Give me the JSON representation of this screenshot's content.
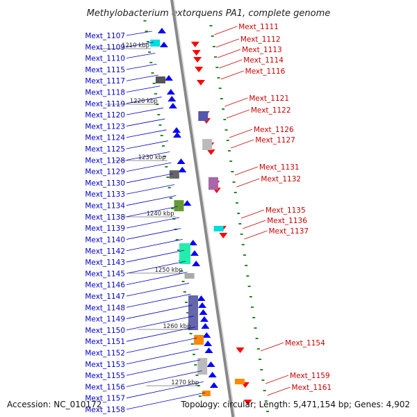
{
  "title": "Methylobacterium extorquens PA1, complete genome",
  "footer": {
    "accession": "Accession: NC_010172",
    "summary": "Topology: circular; Length: 5,471,154 bp; Genes: 4,902"
  },
  "colors": {
    "forward_gene": "#0000ff",
    "reverse_gene": "#ff0000",
    "left_label": "#0000cc",
    "right_label": "#cc0000",
    "backbone": "#888888",
    "tick": "#228822"
  },
  "kbp_marks": [
    "1210 kbp",
    "1220 kbp",
    "1230 kbp",
    "1240 kbp",
    "1250 kbp",
    "1260 kbp",
    "1270 kbp"
  ],
  "left_genes": [
    "Mext_1107",
    "Mext_1109",
    "Mext_1110",
    "Mext_1115",
    "Mext_1117",
    "Mext_1118",
    "Mext_1119",
    "Mext_1120",
    "Mext_1123",
    "Mext_1124",
    "Mext_1125",
    "Mext_1128",
    "Mext_1129",
    "Mext_1130",
    "Mext_1133",
    "Mext_1134",
    "Mext_1138",
    "Mext_1139",
    "Mext_1140",
    "Mext_1142",
    "Mext_1143",
    "Mext_1145",
    "Mext_1146",
    "Mext_1147",
    "Mext_1148",
    "Mext_1149",
    "Mext_1150",
    "Mext_1151",
    "Mext_1152",
    "Mext_1153",
    "Mext_1155",
    "Mext_1156",
    "Mext_1157",
    "Mext_1158"
  ],
  "right_genes": [
    "Mext_1111",
    "Mext_1112",
    "Mext_1113",
    "Mext_1114",
    "Mext_1116",
    "Mext_1121",
    "Mext_1122",
    "Mext_1126",
    "Mext_1127",
    "Mext_1131",
    "Mext_1132",
    "Mext_1135",
    "Mext_1136",
    "Mext_1137",
    "Mext_1154",
    "Mext_1159",
    "Mext_1161"
  ]
}
